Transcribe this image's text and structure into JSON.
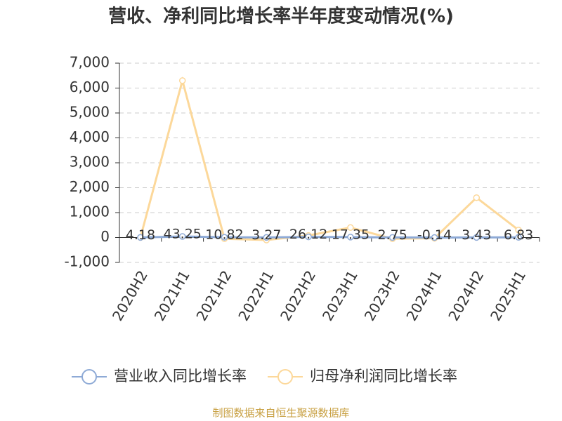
{
  "chart_data": {
    "type": "line",
    "title": "营收、净利同比增长率半年度变动情况(%)",
    "categories": [
      "2020H2",
      "2021H1",
      "2021H2",
      "2022H1",
      "2022H2",
      "2023H1",
      "2023H2",
      "2024H1",
      "2024H2",
      "2025H1"
    ],
    "series": [
      {
        "name": "营业收入同比增长率",
        "color": "#8eaad6",
        "values": [
          4.18,
          43.25,
          10.82,
          3.27,
          26.12,
          17.35,
          2.75,
          -0.14,
          3.43,
          6.83
        ]
      },
      {
        "name": "归母净利润同比增长率",
        "color": "#fcd89a",
        "values": [
          0,
          6300,
          -50,
          -100,
          80,
          400,
          -50,
          -30,
          1600,
          300
        ]
      }
    ],
    "ylim": [
      -1000,
      7000
    ],
    "yticks": [
      {
        "value": -1000,
        "label": "-1,000"
      },
      0,
      {
        "value": 1000,
        "label": "1,000"
      },
      {
        "value": 2000,
        "label": "2,000"
      },
      {
        "value": 3000,
        "label": "3,000"
      },
      {
        "value": 4000,
        "label": "4,000"
      },
      {
        "value": 5000,
        "label": "5,000"
      },
      {
        "value": 6000,
        "label": "6,000"
      },
      {
        "value": 7000,
        "label": "7,000"
      }
    ],
    "grid": true,
    "legend": "bottom",
    "source": "制图数据来自恒生聚源数据库"
  }
}
